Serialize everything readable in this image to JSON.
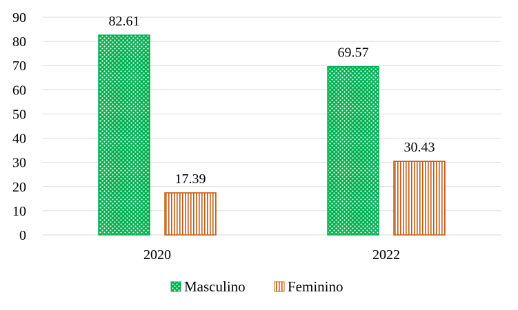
{
  "chart_data": {
    "type": "bar",
    "categories": [
      "2020",
      "2022"
    ],
    "series": [
      {
        "name": "Masculino",
        "values": [
          82.61,
          69.57
        ],
        "color": "#00B050",
        "pattern": "dots"
      },
      {
        "name": "Feminino",
        "values": [
          17.39,
          30.43
        ],
        "color": "#C55A11",
        "pattern": "vertical-stripes"
      }
    ],
    "data_labels": [
      [
        "82.61",
        "69.57"
      ],
      [
        "17.39",
        "30.43"
      ]
    ],
    "y_ticks": [
      "0",
      "10",
      "20",
      "30",
      "40",
      "50",
      "60",
      "70",
      "80",
      "90"
    ],
    "ylim": [
      0,
      90
    ],
    "grid": true,
    "legend": "bottom-center",
    "title": "",
    "xlabel": "",
    "ylabel": ""
  }
}
